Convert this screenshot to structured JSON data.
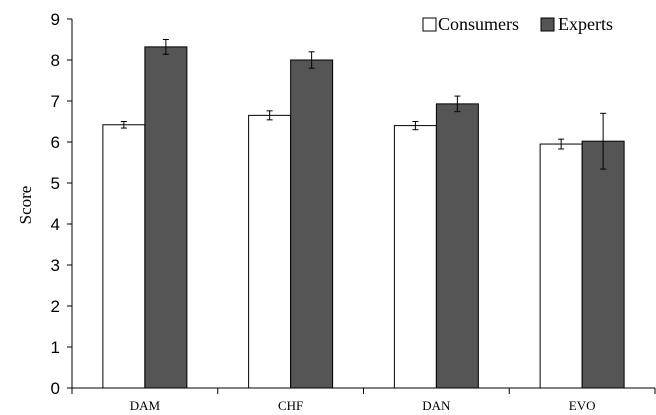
{
  "chart_data": {
    "type": "bar",
    "title": "",
    "xlabel": "",
    "ylabel": "Score",
    "ylim": [
      0,
      9
    ],
    "yticks": [
      0,
      1,
      2,
      3,
      4,
      5,
      6,
      7,
      8,
      9
    ],
    "grid": false,
    "legend_position": "top-right",
    "categories": [
      "DAM",
      "CHF",
      "DAN",
      "EVO"
    ],
    "series": [
      {
        "name": "Consumers",
        "color": "#ffffff",
        "values": [
          6.42,
          6.65,
          6.4,
          5.95
        ],
        "errors": [
          0.08,
          0.11,
          0.1,
          0.12
        ]
      },
      {
        "name": "Experts",
        "color": "#555555",
        "values": [
          8.32,
          8.0,
          6.93,
          6.02
        ],
        "errors": [
          0.18,
          0.2,
          0.19,
          0.68
        ]
      }
    ]
  }
}
